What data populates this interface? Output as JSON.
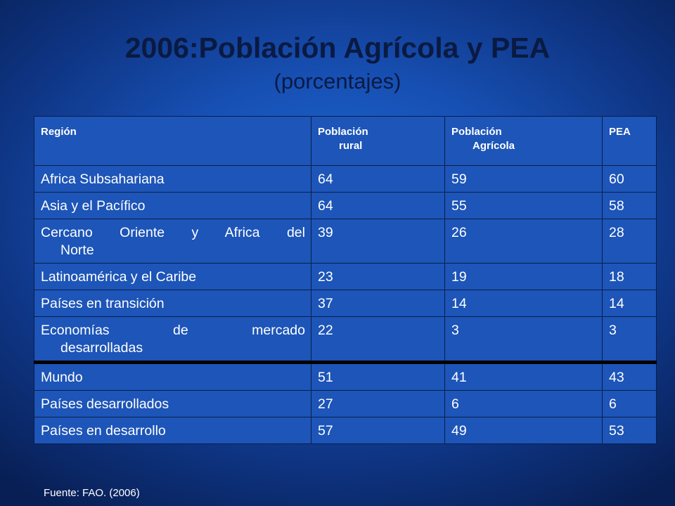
{
  "slide": {
    "title": "2006:Población Agrícola y PEA",
    "subtitle": "(porcentajes)",
    "source": "Fuente: FAO. (2006)"
  },
  "table": {
    "headers": [
      {
        "line1": "Región",
        "line2": ""
      },
      {
        "line1": "Población",
        "line2": "rural"
      },
      {
        "line1": "Población",
        "line2": "Agrícola"
      },
      {
        "line1": "PEA",
        "line2": ""
      }
    ],
    "rows": [
      {
        "region": "Africa Subsahariana",
        "rural": "64",
        "agricola": "59",
        "pea": "60"
      },
      {
        "region": "Asia y el Pacífico",
        "rural": "64",
        "agricola": "55",
        "pea": "58"
      },
      {
        "region_line1": "Cercano Oriente y Africa del",
        "region_line2": "Norte",
        "rural": "39",
        "agricola": "26",
        "pea": "28"
      },
      {
        "region": "Latinoamérica y el Caribe",
        "rural": "23",
        "agricola": "19",
        "pea": "18"
      },
      {
        "region": "Países en transición",
        "rural": "37",
        "agricola": "14",
        "pea": "14"
      },
      {
        "region_line1": "Economías de mercado",
        "region_line2": "desarrolladas",
        "rural": "22",
        "agricola": "3",
        "pea": "3"
      },
      {
        "region": "Mundo",
        "rural": "51",
        "agricola": "41",
        "pea": "43"
      },
      {
        "region": "Países desarrollados",
        "rural": "27",
        "agricola": "6",
        "pea": "6"
      },
      {
        "region": "Países en desarrollo",
        "rural": "57",
        "agricola": "49",
        "pea": "53"
      }
    ]
  }
}
